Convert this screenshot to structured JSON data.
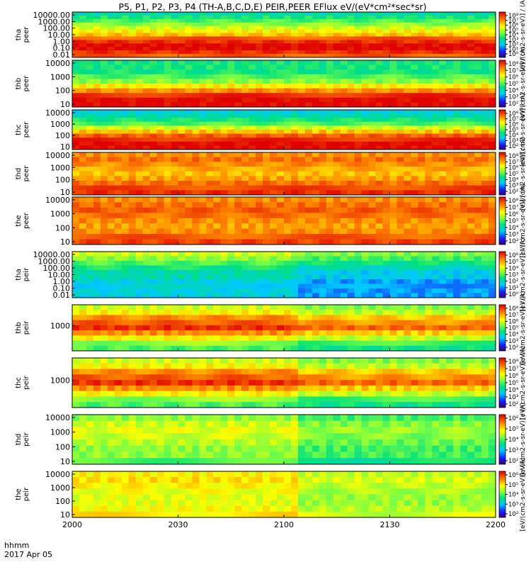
{
  "figure": {
    "title": "P5, P1, P2, P3, P4 (TH-A,B,C,D,E) PEIR,PEER EFlux eV/(eV*cm²*sec*sr)",
    "x_caption_line1": "hhmm",
    "x_caption_line2": "2017 Apr 05",
    "colorbar_label": "[eV/(cm2-s-sr-eV)] / (A)"
  },
  "chart_data": [
    {
      "type": "heatmap",
      "probe": "tha",
      "species": "peer",
      "ylabel": "tha peer",
      "yscale": "log",
      "yticks": [
        "10000.00",
        "1000.00",
        "100.00",
        "10.00",
        "1.00",
        "0.10",
        "0.01"
      ],
      "colorbar_ticks": [
        "10⁸",
        "10⁷",
        "10⁶",
        "10⁵",
        "10⁴",
        "10³",
        "10²",
        "10¹",
        "10⁰"
      ],
      "xticks": [
        "2000",
        "2030",
        "2100",
        "2130",
        "2200"
      ],
      "rows": [
        3,
        3.5,
        4,
        4.5,
        5,
        5.5,
        6,
        7,
        7.5,
        8,
        8,
        7.5,
        7
      ]
    },
    {
      "type": "heatmap",
      "probe": "thb",
      "species": "peer",
      "ylabel": "thb peer",
      "yscale": "log",
      "yticks": [
        "10000",
        "1000",
        "100",
        "10"
      ],
      "colorbar_ticks": [
        "10⁸",
        "10⁷",
        "10⁶",
        "10⁵",
        "10⁴",
        "10³",
        "10²"
      ],
      "xticks": [
        "2000",
        "2030",
        "2100",
        "2130",
        "2200"
      ],
      "rows": [
        3.5,
        3.5,
        3.5,
        4,
        4.5,
        5.5,
        6.5,
        7.5,
        8,
        8
      ]
    },
    {
      "type": "heatmap",
      "probe": "thc",
      "species": "peer",
      "ylabel": "thc peer",
      "yscale": "log",
      "yticks": [
        "10000",
        "1000",
        "100",
        "10"
      ],
      "colorbar_ticks": [
        "10⁸",
        "10⁷",
        "10⁶",
        "10⁵",
        "10⁴",
        "10³",
        "10²"
      ],
      "xticks": [
        "2000",
        "2030",
        "2100",
        "2130",
        "2200"
      ],
      "rows": [
        2.5,
        3,
        3.5,
        4,
        5,
        6,
        7,
        7.5,
        8,
        8
      ]
    },
    {
      "type": "heatmap",
      "probe": "thd",
      "species": "peer",
      "ylabel": "thd peer",
      "yscale": "log",
      "yticks": [
        "10000",
        "1000",
        "100",
        "10"
      ],
      "colorbar_ticks": [
        "10⁸",
        "10⁷",
        "10⁶",
        "10⁵",
        "10⁴",
        "10³",
        "10²"
      ],
      "xticks": [
        "2000",
        "2030",
        "2100",
        "2130",
        "2200"
      ],
      "rows": [
        6.5,
        6.8,
        6.5,
        6.2,
        6,
        6.3,
        6.8,
        7.2,
        7.5
      ]
    },
    {
      "type": "heatmap",
      "probe": "the",
      "species": "peer",
      "ylabel": "the peer",
      "yscale": "log",
      "yticks": [
        "10000",
        "1000",
        "100",
        "10"
      ],
      "colorbar_ticks": [
        "10⁸",
        "10⁷",
        "10⁶",
        "10⁵",
        "10⁴",
        "10³",
        "10²"
      ],
      "xticks": [
        "2000",
        "2030",
        "2100",
        "2130",
        "2200"
      ],
      "rows": [
        6.5,
        6.8,
        7,
        6.8,
        6.5,
        6.3,
        6.5,
        7,
        7.3
      ]
    },
    {
      "type": "heatmap",
      "probe": "tha",
      "species": "peir",
      "ylabel": "tha peir",
      "yscale": "log",
      "yticks": [
        "10000.00",
        "1000.00",
        "100.00",
        "10.00",
        "1.00",
        "0.10",
        "0.01"
      ],
      "colorbar_ticks": [
        "10⁶",
        "10⁵",
        "10⁴",
        "10³",
        "10²",
        "10¹",
        "10⁰"
      ],
      "xticks": [
        "2000",
        "2030",
        "2100",
        "2130",
        "2200"
      ],
      "rows": [
        5,
        4.5,
        4,
        3.5,
        3,
        3,
        2.5,
        2.5,
        2.5,
        2.5
      ]
    },
    {
      "type": "heatmap",
      "probe": "thb",
      "species": "peir",
      "ylabel": "thb peir",
      "yscale": "log",
      "yticks": [
        "1000"
      ],
      "colorbar_ticks": [
        "10⁸",
        "10⁷",
        "10⁶",
        "10⁵",
        "10⁴",
        "10³",
        "10²"
      ],
      "xticks": [
        "2000",
        "2030",
        "2100",
        "2130",
        "2200"
      ],
      "rows": [
        5,
        5.5,
        6.5,
        7,
        7.5,
        6.5,
        5.5,
        4.5,
        4
      ]
    },
    {
      "type": "heatmap",
      "probe": "thc",
      "species": "peir",
      "ylabel": "thc peir",
      "yscale": "log",
      "yticks": [
        "1000"
      ],
      "colorbar_ticks": [
        "10⁸",
        "10⁷",
        "10⁶",
        "10⁵",
        "10⁴",
        "10³",
        "10²"
      ],
      "xticks": [
        "2000",
        "2030",
        "2100",
        "2130",
        "2200"
      ],
      "rows": [
        5,
        5.5,
        6.5,
        7,
        7.5,
        6.5,
        5.5,
        4.5,
        4
      ]
    },
    {
      "type": "heatmap",
      "probe": "thd",
      "species": "peir",
      "ylabel": "thd peir",
      "yscale": "log",
      "yticks": [
        "10000",
        "1000",
        "100",
        "10"
      ],
      "colorbar_ticks": [
        "10⁶",
        "10⁵",
        "10⁴",
        "10³",
        "10²"
      ],
      "xticks": [
        "2000",
        "2030",
        "2100",
        "2130",
        "2200"
      ],
      "rows": [
        4.5,
        5,
        5.2,
        5,
        4.8,
        4.5,
        4.5,
        4
      ]
    },
    {
      "type": "heatmap",
      "probe": "the",
      "species": "peir",
      "ylabel": "the peir",
      "yscale": "log",
      "yticks": [
        "10000",
        "1000",
        "100",
        "10"
      ],
      "colorbar_ticks": [
        "10⁶",
        "10⁵",
        "10⁴",
        "10³",
        "10²"
      ],
      "xticks": [
        "2000",
        "2030",
        "2100",
        "2130",
        "2200"
      ],
      "rows": [
        5.5,
        5.7,
        5.5,
        5.3,
        5.2,
        5.2,
        5.4,
        5.6
      ]
    }
  ]
}
